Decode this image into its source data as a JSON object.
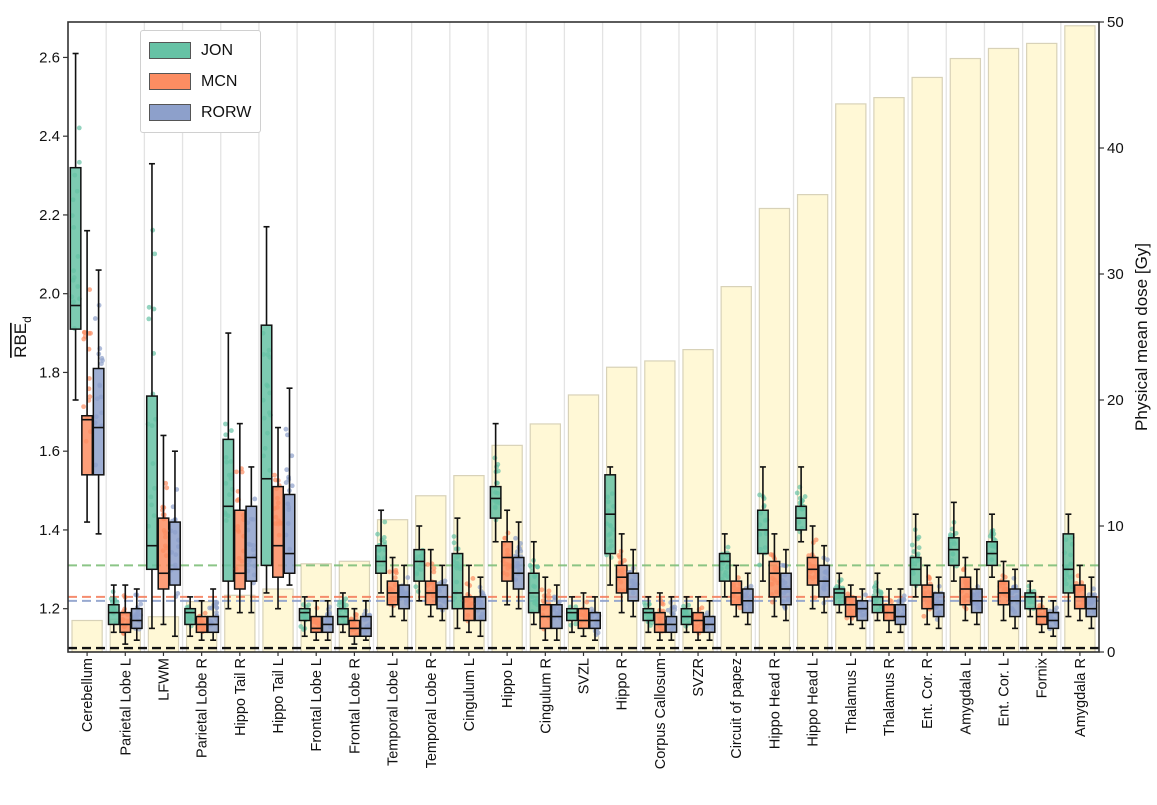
{
  "chart_data": {
    "type": "box",
    "categories": [
      "Cerebellum",
      "Parietal Lobe L",
      "LFWM",
      "Parietal Lobe R",
      "Hippo Tail R",
      "Hippo Tail L",
      "Frontal Lobe L",
      "Frontal Lobe R",
      "Temporal Lobe L",
      "Temporal Lobe R",
      "Cingulum L",
      "Hippo L",
      "Cingulum R",
      "SVZL",
      "Hippo R",
      "Corpus Callosum",
      "SVZR",
      "Circuit of papez",
      "Hippo Head R",
      "Hippo Head L",
      "Thalamus L",
      "Thalamus R",
      "Ent. Cor. R",
      "Amygdala L",
      "Ent. Cor. L",
      "Fornix",
      "Amygdala R"
    ],
    "ylabel_main": "RBE",
    "ylabel_sub": "d",
    "ylabel_right": "Physical mean dose [Gy]",
    "ylim_left": [
      1.09,
      2.69
    ],
    "ylim_right": [
      0,
      50
    ],
    "yticks_left": [
      "1.2",
      "1.4",
      "1.6",
      "1.8",
      "2.0",
      "2.2",
      "2.4",
      "2.6"
    ],
    "yticks_right": [
      "0",
      "10",
      "20",
      "30",
      "40",
      "50"
    ],
    "dose_bars": [
      2.5,
      2.6,
      2.8,
      4.0,
      4.5,
      5.0,
      7.0,
      7.2,
      10.5,
      12.4,
      14.0,
      16.4,
      18.1,
      20.4,
      22.6,
      23.1,
      24.0,
      29.0,
      35.2,
      36.3,
      43.5,
      44.0,
      45.6,
      47.1,
      47.9,
      48.3,
      49.7
    ],
    "reference_lines": [
      {
        "series": "JON",
        "value": 1.31
      },
      {
        "series": "MCN",
        "value": 1.23
      },
      {
        "series": "RORW",
        "value": 1.22
      },
      {
        "series": "reference",
        "value": 1.1
      }
    ],
    "series": [
      {
        "name": "JON",
        "color": "#66c2a5",
        "boxes": [
          [
            1.73,
            1.91,
            1.97,
            2.32,
            2.61
          ],
          [
            1.14,
            1.16,
            1.19,
            1.21,
            1.26
          ],
          [
            1.15,
            1.3,
            1.36,
            1.74,
            2.33
          ],
          [
            1.13,
            1.16,
            1.19,
            1.2,
            1.23
          ],
          [
            1.2,
            1.27,
            1.46,
            1.63,
            1.9
          ],
          [
            1.24,
            1.31,
            1.53,
            1.92,
            2.17
          ],
          [
            1.13,
            1.17,
            1.19,
            1.2,
            1.23
          ],
          [
            1.14,
            1.16,
            1.18,
            1.2,
            1.24
          ],
          [
            1.24,
            1.29,
            1.32,
            1.36,
            1.45
          ],
          [
            1.22,
            1.27,
            1.32,
            1.35,
            1.41
          ],
          [
            1.15,
            1.2,
            1.24,
            1.34,
            1.43
          ],
          [
            1.37,
            1.43,
            1.48,
            1.51,
            1.67
          ],
          [
            1.16,
            1.19,
            1.24,
            1.29,
            1.37
          ],
          [
            1.14,
            1.17,
            1.19,
            1.2,
            1.23
          ],
          [
            1.26,
            1.34,
            1.44,
            1.54,
            1.56
          ],
          [
            1.14,
            1.17,
            1.19,
            1.2,
            1.23
          ],
          [
            1.14,
            1.16,
            1.18,
            1.2,
            1.23
          ],
          [
            1.23,
            1.27,
            1.32,
            1.34,
            1.39
          ],
          [
            1.27,
            1.34,
            1.4,
            1.45,
            1.56
          ],
          [
            1.37,
            1.4,
            1.43,
            1.46,
            1.56
          ],
          [
            1.19,
            1.21,
            1.24,
            1.25,
            1.29
          ],
          [
            1.17,
            1.19,
            1.21,
            1.23,
            1.29
          ],
          [
            1.23,
            1.26,
            1.3,
            1.33,
            1.44
          ],
          [
            1.27,
            1.31,
            1.35,
            1.38,
            1.47
          ],
          [
            1.28,
            1.31,
            1.34,
            1.37,
            1.44
          ],
          [
            1.18,
            1.2,
            1.23,
            1.24,
            1.27
          ],
          [
            1.18,
            1.24,
            1.3,
            1.39,
            1.44
          ]
        ]
      },
      {
        "name": "MCN",
        "color": "#fc8d62",
        "boxes": [
          [
            1.42,
            1.54,
            1.68,
            1.69,
            2.16
          ],
          [
            1.11,
            1.14,
            1.16,
            1.19,
            1.26
          ],
          [
            1.16,
            1.25,
            1.29,
            1.43,
            1.64
          ],
          [
            1.12,
            1.14,
            1.16,
            1.18,
            1.22
          ],
          [
            1.19,
            1.25,
            1.29,
            1.45,
            1.67
          ],
          [
            1.2,
            1.28,
            1.36,
            1.51,
            1.66
          ],
          [
            1.12,
            1.14,
            1.15,
            1.18,
            1.22
          ],
          [
            1.11,
            1.13,
            1.15,
            1.17,
            1.2
          ],
          [
            1.18,
            1.21,
            1.24,
            1.27,
            1.33
          ],
          [
            1.18,
            1.21,
            1.24,
            1.27,
            1.35
          ],
          [
            1.14,
            1.17,
            1.2,
            1.23,
            1.31
          ],
          [
            1.21,
            1.27,
            1.33,
            1.37,
            1.45
          ],
          [
            1.12,
            1.15,
            1.18,
            1.21,
            1.28
          ],
          [
            1.13,
            1.15,
            1.17,
            1.2,
            1.24
          ],
          [
            1.19,
            1.24,
            1.28,
            1.31,
            1.39
          ],
          [
            1.12,
            1.14,
            1.16,
            1.19,
            1.24
          ],
          [
            1.12,
            1.14,
            1.17,
            1.19,
            1.23
          ],
          [
            1.18,
            1.21,
            1.24,
            1.27,
            1.31
          ],
          [
            1.18,
            1.23,
            1.29,
            1.32,
            1.39
          ],
          [
            1.2,
            1.26,
            1.3,
            1.33,
            1.41
          ],
          [
            1.16,
            1.18,
            1.21,
            1.23,
            1.26
          ],
          [
            1.14,
            1.17,
            1.19,
            1.21,
            1.25
          ],
          [
            1.16,
            1.2,
            1.23,
            1.26,
            1.31
          ],
          [
            1.17,
            1.21,
            1.25,
            1.28,
            1.33
          ],
          [
            1.17,
            1.21,
            1.24,
            1.27,
            1.32
          ],
          [
            1.14,
            1.16,
            1.18,
            1.2,
            1.23
          ],
          [
            1.17,
            1.2,
            1.23,
            1.26,
            1.31
          ]
        ]
      },
      {
        "name": "RORW",
        "color": "#8da0cb",
        "boxes": [
          [
            1.39,
            1.54,
            1.66,
            1.81,
            2.06
          ],
          [
            1.12,
            1.15,
            1.17,
            1.2,
            1.25
          ],
          [
            1.13,
            1.26,
            1.3,
            1.42,
            1.6
          ],
          [
            1.12,
            1.14,
            1.16,
            1.18,
            1.25
          ],
          [
            1.19,
            1.27,
            1.33,
            1.46,
            1.56
          ],
          [
            1.26,
            1.29,
            1.34,
            1.49,
            1.76
          ],
          [
            1.12,
            1.14,
            1.16,
            1.18,
            1.22
          ],
          [
            1.12,
            1.13,
            1.15,
            1.18,
            1.22
          ],
          [
            1.17,
            1.2,
            1.23,
            1.26,
            1.31
          ],
          [
            1.17,
            1.2,
            1.23,
            1.26,
            1.31
          ],
          [
            1.13,
            1.17,
            1.2,
            1.23,
            1.28
          ],
          [
            1.2,
            1.25,
            1.29,
            1.33,
            1.42
          ],
          [
            1.12,
            1.15,
            1.18,
            1.21,
            1.26
          ],
          [
            1.12,
            1.15,
            1.17,
            1.19,
            1.23
          ],
          [
            1.18,
            1.22,
            1.25,
            1.29,
            1.35
          ],
          [
            1.12,
            1.14,
            1.16,
            1.18,
            1.23
          ],
          [
            1.12,
            1.14,
            1.16,
            1.18,
            1.22
          ],
          [
            1.16,
            1.19,
            1.22,
            1.25,
            1.29
          ],
          [
            1.17,
            1.21,
            1.25,
            1.29,
            1.35
          ],
          [
            1.19,
            1.23,
            1.27,
            1.31,
            1.36
          ],
          [
            1.15,
            1.17,
            1.2,
            1.22,
            1.25
          ],
          [
            1.14,
            1.16,
            1.18,
            1.21,
            1.25
          ],
          [
            1.15,
            1.18,
            1.21,
            1.24,
            1.28
          ],
          [
            1.16,
            1.19,
            1.22,
            1.25,
            1.3
          ],
          [
            1.15,
            1.18,
            1.22,
            1.25,
            1.3
          ],
          [
            1.13,
            1.15,
            1.17,
            1.19,
            1.22
          ],
          [
            1.15,
            1.18,
            1.2,
            1.23,
            1.28
          ]
        ]
      }
    ],
    "legend": {
      "position": "upper-left",
      "entries": [
        "JON",
        "MCN",
        "RORW"
      ]
    }
  }
}
